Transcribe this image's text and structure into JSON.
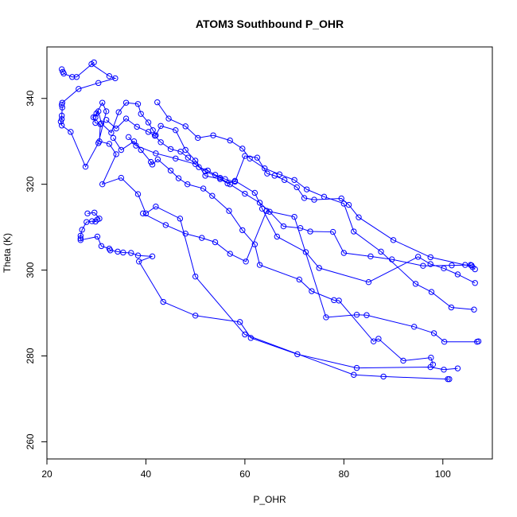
{
  "chart_data": {
    "type": "line",
    "title": "ATOM3 Southbound P_OHR",
    "xlabel": "P_OHR",
    "ylabel": "Theta (K)",
    "xlim": [
      20,
      110
    ],
    "ylim": [
      256,
      352
    ],
    "x_ticks": [
      20,
      40,
      60,
      80,
      100
    ],
    "y_ticks": [
      260,
      280,
      300,
      320,
      340
    ],
    "grid": false,
    "legend": "none",
    "colors": {
      "series": "#0000ff",
      "axis": "#000000"
    },
    "series": [
      {
        "markers": "open-circle",
        "points": [
          [
            23.0,
            346.8
          ],
          [
            23.2,
            346.2
          ],
          [
            23.4,
            345.8
          ],
          [
            25.1,
            345.0
          ],
          [
            26.0,
            345.0
          ],
          [
            29.5,
            348.4
          ],
          [
            29.0,
            348.0
          ],
          [
            32.6,
            345.2
          ],
          [
            33.8,
            344.7
          ],
          [
            30.4,
            343.6
          ],
          [
            26.4,
            342.2
          ],
          [
            23.1,
            339.0
          ],
          [
            23.0,
            338.5
          ],
          [
            23.1,
            337.9
          ],
          [
            23.0,
            336.0
          ],
          [
            23.0,
            335.2
          ],
          [
            22.8,
            334.6
          ],
          [
            23.0,
            333.7
          ],
          [
            24.8,
            332.2
          ],
          [
            27.8,
            324.1
          ],
          [
            30.4,
            329.6
          ],
          [
            32.0,
            337.0
          ],
          [
            31.2,
            339.0
          ],
          [
            30.0,
            336.5
          ],
          [
            29.4,
            335.6
          ],
          [
            29.8,
            334.3
          ],
          [
            30.8,
            334.0
          ],
          [
            30.6,
            330.0
          ],
          [
            32.6,
            329.4
          ],
          [
            34.0,
            327.0
          ],
          [
            31.2,
            320.0
          ],
          [
            35.0,
            321.5
          ],
          [
            38.4,
            317.7
          ],
          [
            40.0,
            313.2
          ],
          [
            42.0,
            314.8
          ],
          [
            46.9,
            312.0
          ],
          [
            50.0,
            298.5
          ],
          [
            60.0,
            285.0
          ],
          [
            82.0,
            275.6
          ],
          [
            88.0,
            275.2
          ],
          [
            101.0,
            274.6
          ],
          [
            101.3,
            274.6
          ]
        ]
      },
      {
        "markers": "open-circle",
        "points": [
          [
            28.2,
            313.2
          ],
          [
            29.6,
            313.4
          ],
          [
            30.6,
            312.0
          ],
          [
            30.2,
            311.8
          ],
          [
            29.8,
            311.3
          ],
          [
            29.1,
            311.4
          ],
          [
            28.0,
            311.2
          ],
          [
            27.1,
            309.4
          ],
          [
            26.8,
            308.0
          ],
          [
            26.8,
            307.4
          ],
          [
            26.8,
            307.0
          ],
          [
            30.2,
            307.8
          ],
          [
            31.0,
            305.6
          ],
          [
            32.6,
            305.0
          ],
          [
            32.8,
            304.6
          ],
          [
            34.3,
            304.3
          ],
          [
            35.4,
            304.1
          ],
          [
            37.0,
            304.0
          ],
          [
            38.4,
            303.4
          ],
          [
            41.3,
            303.2
          ],
          [
            38.6,
            302.0
          ],
          [
            43.5,
            292.6
          ],
          [
            50.0,
            289.4
          ],
          [
            59.0,
            287.9
          ],
          [
            61.2,
            284.2
          ],
          [
            70.6,
            280.4
          ],
          [
            82.6,
            277.2
          ],
          [
            97.5,
            277.4
          ],
          [
            100.2,
            276.8
          ],
          [
            103.0,
            277.1
          ]
        ]
      },
      {
        "markers": "open-circle",
        "points": [
          [
            29.8,
            335.6
          ],
          [
            30.4,
            337.0
          ],
          [
            31.0,
            334.2
          ],
          [
            33.0,
            332.0
          ],
          [
            34.5,
            336.8
          ],
          [
            36.0,
            339.0
          ],
          [
            38.4,
            338.7
          ],
          [
            39.0,
            336.4
          ],
          [
            40.5,
            334.4
          ],
          [
            41.4,
            332.6
          ],
          [
            42.0,
            331.4
          ],
          [
            43.0,
            333.6
          ],
          [
            46.0,
            332.6
          ],
          [
            48.0,
            328.0
          ],
          [
            50.0,
            325.5
          ],
          [
            52.0,
            322.0
          ],
          [
            55.0,
            321.2
          ],
          [
            56.5,
            320.2
          ],
          [
            58.0,
            320.8
          ],
          [
            62.0,
            318.0
          ],
          [
            63.5,
            314.3
          ],
          [
            66.5,
            307.8
          ],
          [
            72.3,
            304.2
          ],
          [
            75.0,
            300.5
          ],
          [
            85.0,
            297.2
          ],
          [
            95.0,
            303.1
          ],
          [
            97.5,
            301.4
          ],
          [
            100.2,
            300.4
          ],
          [
            103.0,
            299.0
          ],
          [
            106.5,
            297.0
          ]
        ]
      },
      {
        "markers": "open-circle",
        "points": [
          [
            32.0,
            335.0
          ],
          [
            34.0,
            333.0
          ],
          [
            36.0,
            335.3
          ],
          [
            38.2,
            333.4
          ],
          [
            40.5,
            332.2
          ],
          [
            41.8,
            331.3
          ],
          [
            43.0,
            329.8
          ],
          [
            45.0,
            328.2
          ],
          [
            47.0,
            327.6
          ],
          [
            48.5,
            326.2
          ],
          [
            50.7,
            324.0
          ],
          [
            52.5,
            323.2
          ],
          [
            54.0,
            322.2
          ],
          [
            56.0,
            321.2
          ],
          [
            58.0,
            320.6
          ],
          [
            60.0,
            326.6
          ],
          [
            62.5,
            326.2
          ],
          [
            64.5,
            322.5
          ],
          [
            66.0,
            322.0
          ],
          [
            68.0,
            321.0
          ],
          [
            70.5,
            319.3
          ],
          [
            72.0,
            316.8
          ],
          [
            74.0,
            316.4
          ],
          [
            79.5,
            316.7
          ],
          [
            81.0,
            315.2
          ],
          [
            83.0,
            312.3
          ],
          [
            90.0,
            307.0
          ],
          [
            97.5,
            303.0
          ],
          [
            104.5,
            301.2
          ],
          [
            105.8,
            301.1
          ]
        ]
      },
      {
        "markers": "open-circle",
        "points": [
          [
            33.4,
            330.8
          ],
          [
            35.0,
            328.0
          ],
          [
            37.6,
            330.0
          ],
          [
            39.0,
            328.0
          ],
          [
            41.0,
            325.2
          ],
          [
            41.3,
            324.6
          ],
          [
            42.4,
            325.8
          ],
          [
            45.0,
            323.2
          ],
          [
            46.6,
            321.4
          ],
          [
            48.4,
            320.0
          ],
          [
            51.6,
            319.0
          ],
          [
            53.4,
            317.3
          ],
          [
            56.8,
            313.8
          ],
          [
            59.5,
            309.3
          ],
          [
            62.0,
            306.0
          ],
          [
            63.0,
            301.2
          ],
          [
            71.0,
            297.8
          ],
          [
            73.5,
            295.1
          ],
          [
            78.0,
            293.0
          ],
          [
            79.0,
            292.9
          ],
          [
            86.0,
            283.4
          ],
          [
            87.0,
            284.0
          ],
          [
            92.0,
            278.9
          ],
          [
            97.6,
            279.6
          ],
          [
            98.0,
            278.0
          ]
        ]
      },
      {
        "markers": "open-circle",
        "points": [
          [
            36.5,
            331.0
          ],
          [
            38.0,
            329.0
          ],
          [
            42.0,
            327.2
          ],
          [
            46.0,
            326.0
          ],
          [
            50.0,
            324.7
          ],
          [
            52.0,
            323.0
          ],
          [
            55.0,
            321.5
          ],
          [
            57.0,
            320.0
          ],
          [
            60.0,
            317.8
          ],
          [
            63.0,
            315.7
          ],
          [
            65.0,
            313.6
          ],
          [
            67.8,
            310.2
          ],
          [
            71.2,
            309.8
          ],
          [
            73.2,
            309.0
          ],
          [
            77.8,
            308.9
          ],
          [
            80.0,
            304.0
          ],
          [
            85.4,
            303.2
          ],
          [
            89.7,
            302.5
          ],
          [
            96.0,
            301.0
          ],
          [
            101.8,
            301.1
          ],
          [
            105.6,
            301.2
          ],
          [
            106.0,
            300.7
          ],
          [
            106.5,
            300.2
          ]
        ]
      },
      {
        "markers": "open-circle",
        "points": [
          [
            42.3,
            339.1
          ],
          [
            44.6,
            335.3
          ],
          [
            48.0,
            333.5
          ],
          [
            50.5,
            330.8
          ],
          [
            53.6,
            331.4
          ],
          [
            57.0,
            330.2
          ],
          [
            59.5,
            328.3
          ],
          [
            61.0,
            326.0
          ],
          [
            64.0,
            323.7
          ],
          [
            67.0,
            322.3
          ],
          [
            70.0,
            321.0
          ],
          [
            72.5,
            318.8
          ],
          [
            76.0,
            317.1
          ],
          [
            80.0,
            315.5
          ],
          [
            82.0,
            309.0
          ],
          [
            87.5,
            304.3
          ],
          [
            94.5,
            296.8
          ],
          [
            97.7,
            294.9
          ],
          [
            101.7,
            291.3
          ],
          [
            106.3,
            290.8
          ]
        ]
      },
      {
        "markers": "open-circle",
        "points": [
          [
            39.4,
            313.2
          ],
          [
            44.0,
            310.5
          ],
          [
            48.0,
            308.5
          ],
          [
            51.3,
            307.5
          ],
          [
            54.0,
            306.5
          ],
          [
            57.0,
            303.8
          ],
          [
            60.2,
            302.0
          ],
          [
            64.4,
            313.8
          ],
          [
            70.0,
            312.4
          ],
          [
            76.4,
            289.0
          ],
          [
            82.6,
            289.6
          ],
          [
            84.6,
            289.5
          ],
          [
            94.2,
            286.8
          ],
          [
            98.2,
            285.3
          ],
          [
            100.3,
            283.3
          ],
          [
            106.9,
            283.3
          ],
          [
            107.2,
            283.4
          ]
        ]
      }
    ]
  }
}
